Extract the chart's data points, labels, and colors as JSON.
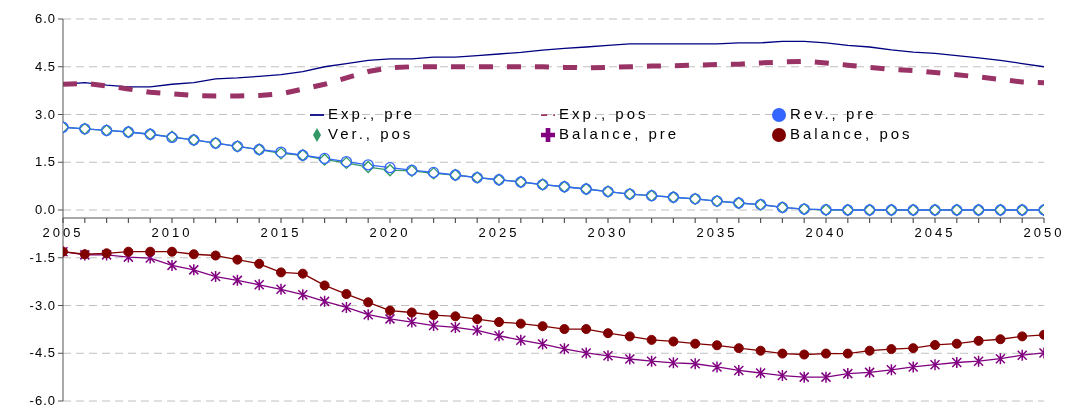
{
  "chart_data": {
    "type": "line",
    "x": [
      2005,
      2006,
      2007,
      2008,
      2009,
      2010,
      2011,
      2012,
      2013,
      2014,
      2015,
      2016,
      2017,
      2018,
      2019,
      2020,
      2021,
      2022,
      2023,
      2024,
      2025,
      2026,
      2027,
      2028,
      2029,
      2030,
      2031,
      2032,
      2033,
      2034,
      2035,
      2036,
      2037,
      2038,
      2039,
      2040,
      2041,
      2042,
      2043,
      2044,
      2045,
      2046,
      2047,
      2048,
      2049,
      2050
    ],
    "series": [
      {
        "name": "Exp., pre",
        "color": "#000080",
        "marker": "none",
        "line_style": "solid",
        "values": [
          3.95,
          4.0,
          3.92,
          3.87,
          3.87,
          3.95,
          4.0,
          4.12,
          4.15,
          4.2,
          4.25,
          4.35,
          4.5,
          4.6,
          4.7,
          4.75,
          4.75,
          4.8,
          4.8,
          4.85,
          4.9,
          4.95,
          5.02,
          5.08,
          5.12,
          5.17,
          5.22,
          5.22,
          5.22,
          5.22,
          5.22,
          5.25,
          5.25,
          5.3,
          5.3,
          5.25,
          5.17,
          5.12,
          5.03,
          4.96,
          4.92,
          4.85,
          4.78,
          4.7,
          4.6,
          4.5
        ]
      },
      {
        "name": "Exp., pos",
        "color": "#993366",
        "marker": "none",
        "line_style": "dashed",
        "values": [
          3.95,
          3.98,
          3.9,
          3.8,
          3.7,
          3.65,
          3.6,
          3.58,
          3.58,
          3.6,
          3.65,
          3.8,
          3.95,
          4.15,
          4.35,
          4.47,
          4.5,
          4.5,
          4.5,
          4.5,
          4.5,
          4.5,
          4.5,
          4.48,
          4.47,
          4.48,
          4.5,
          4.52,
          4.53,
          4.55,
          4.57,
          4.58,
          4.62,
          4.65,
          4.67,
          4.62,
          4.55,
          4.48,
          4.42,
          4.38,
          4.32,
          4.25,
          4.18,
          4.1,
          4.02,
          4.0
        ]
      },
      {
        "name": "Rev., pre",
        "color": "#3366ff",
        "marker": "circle",
        "line_style": "solid",
        "values": [
          2.6,
          2.55,
          2.5,
          2.45,
          2.38,
          2.28,
          2.2,
          2.1,
          2.0,
          1.9,
          1.82,
          1.72,
          1.62,
          1.52,
          1.42,
          1.33,
          1.25,
          1.18,
          1.1,
          1.02,
          0.95,
          0.88,
          0.8,
          0.73,
          0.66,
          0.58,
          0.5,
          0.45,
          0.4,
          0.35,
          0.28,
          0.22,
          0.17,
          0.08,
          0.03,
          0.01,
          0,
          0,
          0,
          0,
          0,
          0,
          0,
          0,
          0,
          0
        ]
      },
      {
        "name": "Ver., pos",
        "color": "#339966",
        "marker": "diamond",
        "line_style": "solid",
        "values": [
          2.6,
          2.55,
          2.5,
          2.45,
          2.38,
          2.3,
          2.2,
          2.1,
          2.0,
          1.9,
          1.78,
          1.72,
          1.58,
          1.48,
          1.35,
          1.25,
          1.23,
          1.15,
          1.1,
          1.02,
          0.95,
          0.88,
          0.8,
          0.73,
          0.66,
          0.58,
          0.5,
          0.45,
          0.4,
          0.35,
          0.28,
          0.22,
          0.17,
          0.08,
          0.03,
          0,
          0,
          0,
          0,
          0,
          0,
          0,
          0,
          0,
          0,
          0
        ]
      },
      {
        "name": "Balance, pre",
        "color": "#800080",
        "marker": "cross",
        "line_style": "solid",
        "values": [
          -1.31,
          -1.41,
          -1.41,
          -1.48,
          -1.51,
          -1.74,
          -1.88,
          -2.09,
          -2.21,
          -2.35,
          -2.49,
          -2.66,
          -2.87,
          -3.06,
          -3.29,
          -3.42,
          -3.52,
          -3.63,
          -3.69,
          -3.78,
          -3.95,
          -4.09,
          -4.21,
          -4.36,
          -4.49,
          -4.58,
          -4.68,
          -4.75,
          -4.8,
          -4.83,
          -4.93,
          -5.04,
          -5.12,
          -5.2,
          -5.25,
          -5.25,
          -5.14,
          -5.1,
          -5.02,
          -4.93,
          -4.86,
          -4.79,
          -4.75,
          -4.67,
          -4.56,
          -4.49
        ]
      },
      {
        "name": "Balance, pos",
        "color": "#800000",
        "marker": "circle",
        "line_style": "solid",
        "values": [
          -1.31,
          -1.39,
          -1.36,
          -1.31,
          -1.31,
          -1.31,
          -1.39,
          -1.43,
          -1.56,
          -1.69,
          -1.96,
          -2.0,
          -2.37,
          -2.64,
          -2.9,
          -3.16,
          -3.22,
          -3.3,
          -3.34,
          -3.43,
          -3.52,
          -3.57,
          -3.65,
          -3.74,
          -3.74,
          -3.87,
          -3.97,
          -4.08,
          -4.13,
          -4.2,
          -4.25,
          -4.34,
          -4.42,
          -4.51,
          -4.54,
          -4.51,
          -4.51,
          -4.42,
          -4.37,
          -4.34,
          -4.24,
          -4.2,
          -4.11,
          -4.06,
          -3.97,
          -3.92
        ]
      }
    ],
    "xlim": [
      2005,
      2050
    ],
    "xticks": [
      2005,
      {
        "value": 2006,
        "label": null
      },
      {
        "value": 2007,
        "label": null
      },
      {
        "value": 2008,
        "label": null
      },
      {
        "value": 2009,
        "label": null
      },
      2010,
      {
        "value": 2011,
        "label": null
      },
      {
        "value": 2012,
        "label": null
      },
      {
        "value": 2013,
        "label": null
      },
      {
        "value": 2014,
        "label": null
      },
      2015,
      {
        "value": 2016,
        "label": null
      },
      {
        "value": 2017,
        "label": null
      },
      {
        "value": 2018,
        "label": null
      },
      {
        "value": 2019,
        "label": null
      },
      2020,
      {
        "value": 2021,
        "label": null
      },
      {
        "value": 2022,
        "label": null
      },
      {
        "value": 2023,
        "label": null
      },
      {
        "value": 2024,
        "label": null
      },
      2025,
      {
        "value": 2026,
        "label": null
      },
      {
        "value": 2027,
        "label": null
      },
      {
        "value": 2028,
        "label": null
      },
      {
        "value": 2029,
        "label": null
      },
      2030,
      {
        "value": 2031,
        "label": null
      },
      {
        "value": 2032,
        "label": null
      },
      {
        "value": 2033,
        "label": null
      },
      {
        "value": 2034,
        "label": null
      },
      2035,
      {
        "value": 2036,
        "label": null
      },
      {
        "value": 2037,
        "label": null
      },
      {
        "value": 2038,
        "label": null
      },
      {
        "value": 2039,
        "label": null
      },
      2040,
      {
        "value": 2041,
        "label": null
      },
      {
        "value": 2042,
        "label": null
      },
      {
        "value": 2043,
        "label": null
      },
      {
        "value": 2044,
        "label": null
      },
      2045,
      {
        "value": 2046,
        "label": null
      },
      {
        "value": 2047,
        "label": null
      },
      {
        "value": 2048,
        "label": null
      },
      {
        "value": 2049,
        "label": null
      },
      2050
    ],
    "ylim": [
      -6,
      6
    ],
    "yticks": [
      {
        "value": 6,
        "label": "6.0"
      },
      {
        "value": 4.5,
        "label": "4.5"
      },
      {
        "value": 3,
        "label": "3.0"
      },
      {
        "value": 1.5,
        "label": "1.5"
      },
      {
        "value": 0,
        "label": "0.0"
      },
      {
        "value": -1.5,
        "label": "-1.5"
      },
      {
        "value": -3,
        "label": "-3.0"
      },
      {
        "value": -4.5,
        "label": "-4.5"
      },
      {
        "value": -6,
        "label": "-6.0"
      }
    ],
    "grid": "y",
    "legend": "top right"
  }
}
